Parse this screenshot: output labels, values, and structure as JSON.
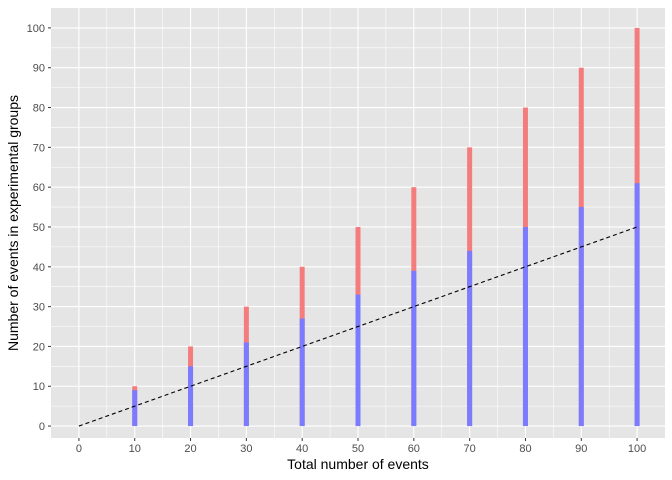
{
  "chart_data": {
    "type": "bar",
    "xlabel": "Total number of events",
    "ylabel": "Number of events in experimental groups",
    "x_ticks": [
      "0",
      "10",
      "20",
      "30",
      "40",
      "50",
      "60",
      "70",
      "80",
      "90",
      "100"
    ],
    "y_ticks": [
      "0",
      "10",
      "20",
      "30",
      "40",
      "50",
      "60",
      "70",
      "80",
      "90",
      "100"
    ],
    "xlim": [
      -5,
      105
    ],
    "ylim": [
      -3,
      105
    ],
    "grid": true,
    "legend": "none",
    "colors": {
      "panel_background": "#e5e5e5",
      "grid_line": "#ffffff",
      "total_bar": "#f47c7c",
      "experimental_bar": "#7b7bff",
      "reference_line": "#000000"
    },
    "series": [
      {
        "x": [
          10,
          20,
          30,
          40,
          50,
          60,
          70,
          80,
          90,
          100
        ],
        "values": [
          10,
          20,
          30,
          40,
          50,
          60,
          70,
          80,
          90,
          100
        ]
      },
      {
        "x": [
          10,
          20,
          30,
          40,
          50,
          60,
          70,
          80,
          90,
          100
        ],
        "values": [
          9,
          15,
          21,
          27,
          33,
          39,
          44,
          50,
          55,
          61
        ]
      }
    ],
    "reference_line": {
      "style": "dashed",
      "x": [
        0,
        100
      ],
      "y": [
        0,
        50
      ]
    }
  }
}
